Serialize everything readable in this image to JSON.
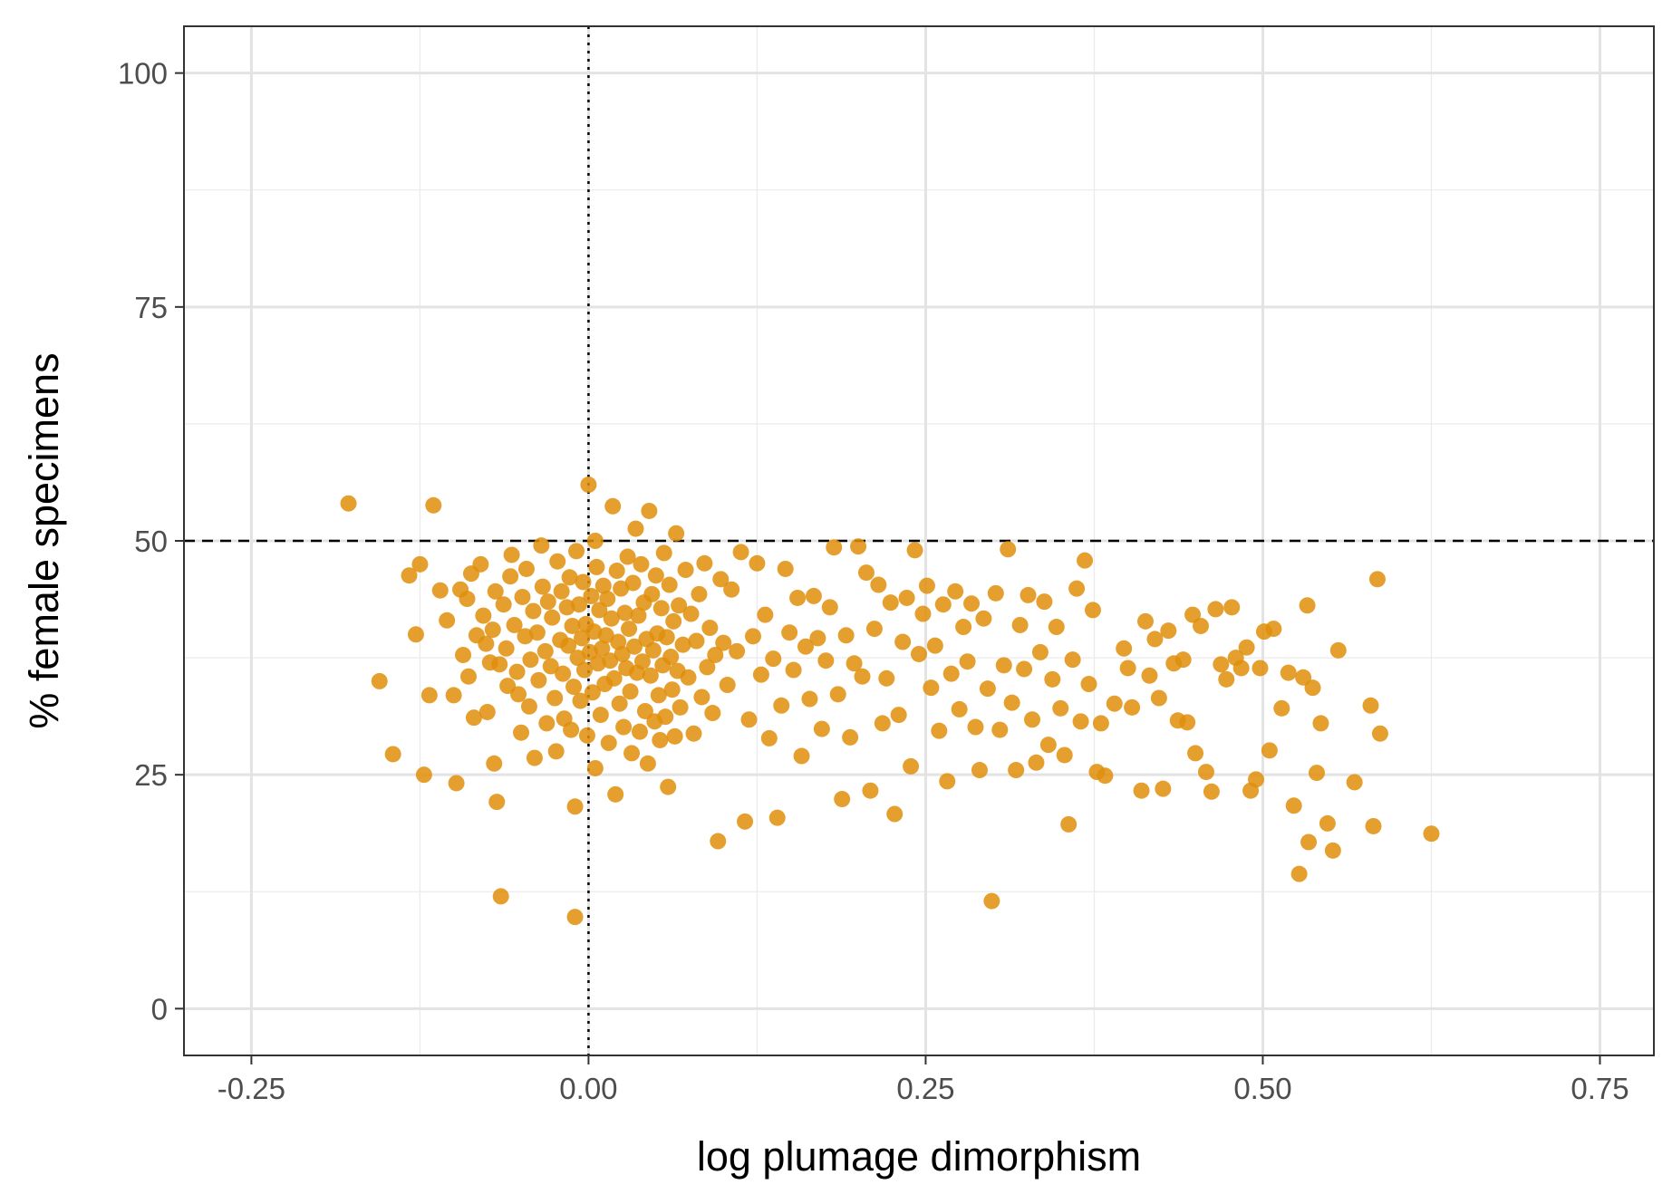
{
  "chart_data": {
    "type": "scatter",
    "title": "",
    "xlabel": "log plumage dimorphism",
    "ylabel": "% female specimens",
    "xlim": [
      -0.3,
      0.79
    ],
    "ylim": [
      -5,
      105
    ],
    "x_ticks": [
      -0.25,
      0.0,
      0.25,
      0.5,
      0.75
    ],
    "x_tick_labels": [
      "-0.25",
      "0.00",
      "0.25",
      "0.50",
      "0.75"
    ],
    "y_ticks": [
      0,
      25,
      50,
      75,
      100
    ],
    "y_tick_labels": [
      "0",
      "25",
      "50",
      "75",
      "100"
    ],
    "x_minor_ticks": [
      -0.125,
      0.125,
      0.375,
      0.625
    ],
    "y_minor_ticks": [
      12.5,
      37.5,
      62.5,
      87.5
    ],
    "grid": true,
    "legend": "none",
    "reference_lines": [
      {
        "orientation": "horizontal",
        "value": 50,
        "style": "dashed",
        "color": "#000000"
      },
      {
        "orientation": "vertical",
        "value": 0,
        "style": "dotted",
        "color": "#000000"
      }
    ],
    "point_color": "#E08E0B",
    "points": [
      [
        -0.178,
        54
      ],
      [
        -0.115,
        53.8
      ],
      [
        -0.155,
        35
      ],
      [
        -0.145,
        27.2
      ],
      [
        -0.125,
        47.5
      ],
      [
        -0.133,
        46.3
      ],
      [
        -0.128,
        40
      ],
      [
        -0.122,
        25
      ],
      [
        -0.118,
        33.5
      ],
      [
        -0.11,
        44.7
      ],
      [
        -0.105,
        41.5
      ],
      [
        -0.1,
        33.5
      ],
      [
        -0.098,
        24.1
      ],
      [
        -0.095,
        44.8
      ],
      [
        -0.093,
        37.8
      ],
      [
        -0.09,
        43.8
      ],
      [
        -0.089,
        35.5
      ],
      [
        -0.087,
        46.5
      ],
      [
        -0.085,
        31.1
      ],
      [
        -0.083,
        39.9
      ],
      [
        -0.08,
        47.5
      ],
      [
        -0.078,
        42
      ],
      [
        -0.076,
        39
      ],
      [
        -0.075,
        31.7
      ],
      [
        -0.073,
        37
      ],
      [
        -0.071,
        40.5
      ],
      [
        -0.07,
        26.2
      ],
      [
        -0.069,
        44.6
      ],
      [
        -0.068,
        22.1
      ],
      [
        -0.066,
        36.8
      ],
      [
        -0.065,
        12
      ],
      [
        -0.063,
        43.2
      ],
      [
        -0.061,
        38.5
      ],
      [
        -0.06,
        34.5
      ],
      [
        -0.058,
        46.2
      ],
      [
        -0.057,
        48.5
      ],
      [
        -0.055,
        41
      ],
      [
        -0.053,
        36
      ],
      [
        -0.052,
        33.6
      ],
      [
        -0.05,
        29.5
      ],
      [
        -0.049,
        44
      ],
      [
        -0.047,
        39.8
      ],
      [
        -0.046,
        47
      ],
      [
        -0.044,
        32.3
      ],
      [
        -0.043,
        37.3
      ],
      [
        -0.041,
        42.5
      ],
      [
        -0.04,
        26.8
      ],
      [
        -0.038,
        40.2
      ],
      [
        -0.037,
        35.1
      ],
      [
        -0.035,
        49.5
      ],
      [
        -0.034,
        45.1
      ],
      [
        -0.032,
        38.2
      ],
      [
        -0.031,
        30.5
      ],
      [
        -0.03,
        43.5
      ],
      [
        -0.028,
        36.6
      ],
      [
        -0.027,
        41.8
      ],
      [
        -0.025,
        33.2
      ],
      [
        -0.024,
        27.5
      ],
      [
        -0.023,
        47.8
      ],
      [
        -0.021,
        39.4
      ],
      [
        -0.02,
        44.6
      ],
      [
        -0.019,
        35.8
      ],
      [
        -0.018,
        31
      ],
      [
        -0.016,
        42.9
      ],
      [
        -0.015,
        38.8
      ],
      [
        -0.014,
        46.1
      ],
      [
        -0.013,
        29.8
      ],
      [
        -0.012,
        40.9
      ],
      [
        -0.011,
        34.4
      ],
      [
        -0.01,
        21.6
      ],
      [
        -0.01,
        9.8
      ],
      [
        -0.009,
        48.9
      ],
      [
        -0.008,
        37.5
      ],
      [
        -0.007,
        43.2
      ],
      [
        -0.006,
        32.9
      ],
      [
        -0.005,
        39.6
      ],
      [
        -0.004,
        45.6
      ],
      [
        -0.003,
        36.2
      ],
      [
        -0.002,
        41.1
      ],
      [
        -0.001,
        29.2
      ],
      [
        0,
        56
      ],
      [
        0.001,
        38.1
      ],
      [
        0.002,
        44.1
      ],
      [
        0.003,
        33.8
      ],
      [
        0.004,
        40.3
      ],
      [
        0.005,
        50
      ],
      [
        0.005,
        25.7
      ],
      [
        0.006,
        47.2
      ],
      [
        0.007,
        36.9
      ],
      [
        0.008,
        42.6
      ],
      [
        0.009,
        31.4
      ],
      [
        0.01,
        38.5
      ],
      [
        0.011,
        45.2
      ],
      [
        0.012,
        34.7
      ],
      [
        0.013,
        39.9
      ],
      [
        0.014,
        43.8
      ],
      [
        0.015,
        28.4
      ],
      [
        0.016,
        37.2
      ],
      [
        0.017,
        41.7
      ],
      [
        0.018,
        53.7
      ],
      [
        0.019,
        35.3
      ],
      [
        0.02,
        22.9
      ],
      [
        0.021,
        46.8
      ],
      [
        0.022,
        39.2
      ],
      [
        0.023,
        32.6
      ],
      [
        0.024,
        44.9
      ],
      [
        0.025,
        37.9
      ],
      [
        0.026,
        30.1
      ],
      [
        0.027,
        42.3
      ],
      [
        0.028,
        36.4
      ],
      [
        0.029,
        48.3
      ],
      [
        0.03,
        40.6
      ],
      [
        0.031,
        33.9
      ],
      [
        0.032,
        27.3
      ],
      [
        0.033,
        45.5
      ],
      [
        0.034,
        38.7
      ],
      [
        0.035,
        51.3
      ],
      [
        0.036,
        35.9
      ],
      [
        0.037,
        42
      ],
      [
        0.038,
        29.6
      ],
      [
        0.039,
        47.5
      ],
      [
        0.04,
        37.1
      ],
      [
        0.041,
        43.4
      ],
      [
        0.042,
        31.8
      ],
      [
        0.043,
        39.5
      ],
      [
        0.044,
        26.2
      ],
      [
        0.045,
        53.2
      ],
      [
        0.046,
        35.6
      ],
      [
        0.047,
        44.3
      ],
      [
        0.048,
        38.3
      ],
      [
        0.049,
        30.7
      ],
      [
        0.05,
        46.3
      ],
      [
        0.051,
        40.1
      ],
      [
        0.052,
        33.5
      ],
      [
        0.053,
        28.7
      ],
      [
        0.054,
        42.8
      ],
      [
        0.055,
        36.7
      ],
      [
        0.056,
        48.7
      ],
      [
        0.057,
        31.2
      ],
      [
        0.058,
        39.7
      ],
      [
        0.059,
        23.7
      ],
      [
        0.06,
        45.3
      ],
      [
        0.061,
        37.6
      ],
      [
        0.062,
        34.1
      ],
      [
        0.063,
        41.4
      ],
      [
        0.064,
        29.1
      ],
      [
        0.065,
        50.8
      ],
      [
        0.066,
        36.1
      ],
      [
        0.067,
        43.1
      ],
      [
        0.068,
        32.2
      ],
      [
        0.07,
        38.9
      ],
      [
        0.072,
        46.9
      ],
      [
        0.074,
        35.4
      ],
      [
        0.076,
        42.2
      ],
      [
        0.078,
        29.4
      ],
      [
        0.08,
        39.3
      ],
      [
        0.082,
        44.3
      ],
      [
        0.084,
        33.3
      ],
      [
        0.086,
        47.6
      ],
      [
        0.088,
        36.5
      ],
      [
        0.09,
        40.7
      ],
      [
        0.092,
        31.6
      ],
      [
        0.094,
        37.8
      ],
      [
        0.096,
        17.9
      ],
      [
        0.098,
        45.9
      ],
      [
        0.1,
        39.1
      ],
      [
        0.103,
        34.6
      ],
      [
        0.106,
        44.8
      ],
      [
        0.11,
        38.2
      ],
      [
        0.113,
        48.8
      ],
      [
        0.116,
        20
      ],
      [
        0.119,
        30.9
      ],
      [
        0.122,
        39.8
      ],
      [
        0.125,
        47.6
      ],
      [
        0.128,
        35.7
      ],
      [
        0.131,
        42.1
      ],
      [
        0.134,
        28.9
      ],
      [
        0.137,
        37.4
      ],
      [
        0.14,
        20.4
      ],
      [
        0.143,
        32.4
      ],
      [
        0.146,
        47
      ],
      [
        0.149,
        40.2
      ],
      [
        0.152,
        36.2
      ],
      [
        0.155,
        43.9
      ],
      [
        0.158,
        27
      ],
      [
        0.161,
        38.7
      ],
      [
        0.164,
        33.1
      ],
      [
        0.167,
        44.1
      ],
      [
        0.17,
        39.6
      ],
      [
        0.173,
        29.9
      ],
      [
        0.176,
        37.2
      ],
      [
        0.179,
        42.9
      ],
      [
        0.182,
        49.3
      ],
      [
        0.185,
        33.6
      ],
      [
        0.188,
        22.4
      ],
      [
        0.191,
        39.9
      ],
      [
        0.194,
        29
      ],
      [
        0.197,
        36.9
      ],
      [
        0.2,
        49.4
      ],
      [
        0.203,
        35.5
      ],
      [
        0.206,
        46.6
      ],
      [
        0.209,
        23.3
      ],
      [
        0.212,
        40.6
      ],
      [
        0.215,
        45.3
      ],
      [
        0.218,
        30.5
      ],
      [
        0.221,
        35.3
      ],
      [
        0.224,
        43.4
      ],
      [
        0.227,
        20.8
      ],
      [
        0.23,
        31.4
      ],
      [
        0.233,
        39.2
      ],
      [
        0.236,
        43.9
      ],
      [
        0.239,
        25.9
      ],
      [
        0.242,
        49
      ],
      [
        0.245,
        37.9
      ],
      [
        0.248,
        42.2
      ],
      [
        0.251,
        45.2
      ],
      [
        0.254,
        34.3
      ],
      [
        0.257,
        38.8
      ],
      [
        0.26,
        29.7
      ],
      [
        0.263,
        43.2
      ],
      [
        0.266,
        24.3
      ],
      [
        0.269,
        35.8
      ],
      [
        0.272,
        44.6
      ],
      [
        0.275,
        32
      ],
      [
        0.278,
        40.8
      ],
      [
        0.281,
        37.1
      ],
      [
        0.284,
        43.3
      ],
      [
        0.287,
        30.1
      ],
      [
        0.29,
        25.5
      ],
      [
        0.293,
        41.7
      ],
      [
        0.296,
        34.2
      ],
      [
        0.299,
        11.5
      ],
      [
        0.302,
        44.4
      ],
      [
        0.305,
        29.8
      ],
      [
        0.308,
        36.7
      ],
      [
        0.311,
        49.1
      ],
      [
        0.314,
        32.7
      ],
      [
        0.317,
        25.5
      ],
      [
        0.32,
        41
      ],
      [
        0.323,
        36.3
      ],
      [
        0.326,
        44.2
      ],
      [
        0.329,
        30.9
      ],
      [
        0.332,
        26.3
      ],
      [
        0.335,
        38.1
      ],
      [
        0.338,
        43.5
      ],
      [
        0.341,
        28.2
      ],
      [
        0.344,
        35.2
      ],
      [
        0.347,
        40.8
      ],
      [
        0.35,
        32.1
      ],
      [
        0.353,
        27.1
      ],
      [
        0.356,
        19.7
      ],
      [
        0.359,
        37.3
      ],
      [
        0.362,
        44.9
      ],
      [
        0.365,
        30.7
      ],
      [
        0.368,
        47.9
      ],
      [
        0.371,
        34.7
      ],
      [
        0.374,
        42.6
      ],
      [
        0.377,
        25.3
      ],
      [
        0.38,
        30.5
      ],
      [
        0.383,
        24.9
      ],
      [
        0.39,
        32.6
      ],
      [
        0.397,
        38.5
      ],
      [
        0.4,
        36.4
      ],
      [
        0.403,
        32.2
      ],
      [
        0.41,
        23.3
      ],
      [
        0.413,
        41.4
      ],
      [
        0.416,
        35.6
      ],
      [
        0.42,
        39.5
      ],
      [
        0.423,
        33.2
      ],
      [
        0.426,
        23.5
      ],
      [
        0.43,
        40.4
      ],
      [
        0.434,
        36.9
      ],
      [
        0.437,
        30.8
      ],
      [
        0.441,
        37.3
      ],
      [
        0.444,
        30.6
      ],
      [
        0.448,
        42.1
      ],
      [
        0.45,
        27.3
      ],
      [
        0.454,
        40.9
      ],
      [
        0.458,
        25.3
      ],
      [
        0.462,
        23.2
      ],
      [
        0.465,
        42.7
      ],
      [
        0.469,
        36.8
      ],
      [
        0.473,
        35.2
      ],
      [
        0.477,
        42.9
      ],
      [
        0.48,
        37.5
      ],
      [
        0.484,
        36.4
      ],
      [
        0.488,
        38.6
      ],
      [
        0.491,
        23.3
      ],
      [
        0.495,
        24.5
      ],
      [
        0.498,
        36.4
      ],
      [
        0.501,
        40.3
      ],
      [
        0.505,
        27.6
      ],
      [
        0.508,
        40.6
      ],
      [
        0.514,
        32.1
      ],
      [
        0.519,
        35.9
      ],
      [
        0.523,
        21.7
      ],
      [
        0.527,
        14.4
      ],
      [
        0.53,
        35.4
      ],
      [
        0.533,
        43.1
      ],
      [
        0.534,
        17.8
      ],
      [
        0.537,
        34.3
      ],
      [
        0.54,
        25.2
      ],
      [
        0.543,
        30.5
      ],
      [
        0.548,
        19.8
      ],
      [
        0.552,
        16.9
      ],
      [
        0.556,
        38.3
      ],
      [
        0.568,
        24.2
      ],
      [
        0.58,
        32.4
      ],
      [
        0.582,
        19.5
      ],
      [
        0.585,
        45.9
      ],
      [
        0.587,
        29.4
      ],
      [
        0.625,
        18.7
      ]
    ]
  }
}
